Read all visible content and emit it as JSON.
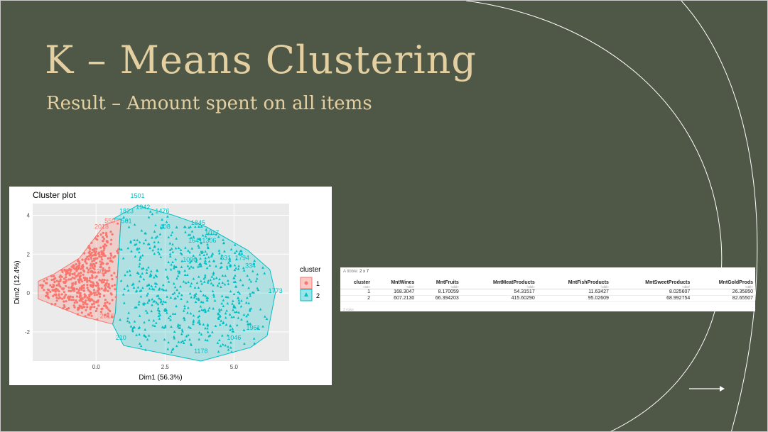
{
  "slide": {
    "title": "K – Means Clustering",
    "subtitle": "Result – Amount spent on all items",
    "colors": {
      "background": "#4f5746",
      "title": "#e4cfa1",
      "arcs": "#ffffff"
    },
    "next_arrow": "right-arrow-icon"
  },
  "chart_data": {
    "type": "scatter",
    "title": "Cluster plot",
    "xlabel": "Dim1 (56.3%)",
    "ylabel": "Dim2 (12.4%)",
    "xlim": [
      -2.3,
      7.0
    ],
    "ylim": [
      -3.5,
      4.6
    ],
    "x_ticks": [
      "0.0",
      "2.5",
      "5.0"
    ],
    "x_tick_values": [
      0.0,
      2.5,
      5.0
    ],
    "y_ticks": [
      "4",
      "2",
      "0",
      "-2"
    ],
    "y_tick_values": [
      4,
      2,
      0,
      -2
    ],
    "grid": true,
    "legend": {
      "title": "cluster",
      "position": "right",
      "entries": [
        {
          "label": "1",
          "color": "#f8766d",
          "shape": "circle"
        },
        {
          "label": "2",
          "color": "#00bfc4",
          "shape": "triangle"
        }
      ]
    },
    "series": [
      {
        "name": "1",
        "color": "#f8766d",
        "hull": [
          [
            -2.1,
            0.6
          ],
          [
            -1.5,
            1.0
          ],
          [
            -0.6,
            1.8
          ],
          [
            0.3,
            3.5
          ],
          [
            0.9,
            3.8
          ],
          [
            0.8,
            1.5
          ],
          [
            0.7,
            -1.0
          ],
          [
            0.6,
            -1.6
          ],
          [
            -0.5,
            -1.2
          ],
          [
            -2.1,
            -0.3
          ]
        ],
        "annotations": [
          {
            "text": "550",
            "x": 0.5,
            "y": 3.6
          },
          {
            "text": "2018",
            "x": 0.2,
            "y": 3.3
          },
          {
            "text": "201",
            "x": 0.2,
            "y": 1.0
          },
          {
            "text": "2016",
            "x": 0.4,
            "y": -1.3
          }
        ]
      },
      {
        "name": "2",
        "color": "#00bfc4",
        "hull": [
          [
            0.6,
            3.8
          ],
          [
            1.5,
            4.5
          ],
          [
            2.8,
            4.0
          ],
          [
            4.0,
            3.4
          ],
          [
            5.5,
            2.2
          ],
          [
            6.3,
            1.2
          ],
          [
            6.5,
            0.0
          ],
          [
            6.2,
            -2.2
          ],
          [
            5.6,
            -2.8
          ],
          [
            3.8,
            -3.5
          ],
          [
            1.0,
            -2.7
          ],
          [
            0.6,
            -1.6
          ],
          [
            0.7,
            -1.0
          ],
          [
            0.8,
            1.5
          ],
          [
            0.9,
            3.8
          ]
        ],
        "annotations": [
          {
            "text": "1501",
            "x": 1.5,
            "y": 4.9
          },
          {
            "text": "1942",
            "x": 1.7,
            "y": 4.3
          },
          {
            "text": "1476",
            "x": 2.4,
            "y": 4.1
          },
          {
            "text": "1823",
            "x": 1.1,
            "y": 4.1
          },
          {
            "text": "561",
            "x": 1.1,
            "y": 3.6
          },
          {
            "text": "408",
            "x": 2.5,
            "y": 3.3
          },
          {
            "text": "1845",
            "x": 3.7,
            "y": 3.5
          },
          {
            "text": "1017",
            "x": 4.2,
            "y": 3.0
          },
          {
            "text": "1641",
            "x": 3.6,
            "y": 2.6
          },
          {
            "text": "1306",
            "x": 4.1,
            "y": 2.6
          },
          {
            "text": "631",
            "x": 4.7,
            "y": 1.7
          },
          {
            "text": "1794",
            "x": 5.3,
            "y": 1.7
          },
          {
            "text": "334",
            "x": 5.6,
            "y": 1.3
          },
          {
            "text": "1090",
            "x": 3.4,
            "y": 1.6
          },
          {
            "text": "1773",
            "x": 6.5,
            "y": 0.0
          },
          {
            "text": "1961",
            "x": 5.7,
            "y": -1.9
          },
          {
            "text": "210",
            "x": 0.9,
            "y": -2.4
          },
          {
            "text": "1046",
            "x": 5.0,
            "y": -2.4
          },
          {
            "text": "1178",
            "x": 3.8,
            "y": -3.1
          }
        ]
      }
    ]
  },
  "table": {
    "header": "A tibble:",
    "dims": "2 x 7",
    "columns": [
      {
        "name": "cluster",
        "type": "<int>"
      },
      {
        "name": "MntWines",
        "type": "<dbl>"
      },
      {
        "name": "MntFruits",
        "type": "<dbl>"
      },
      {
        "name": "MntMeatProducts",
        "type": "<dbl>"
      },
      {
        "name": "MntFishProducts",
        "type": "<dbl>"
      },
      {
        "name": "MntSweetProducts",
        "type": "<dbl>"
      },
      {
        "name": "MntGoldProds",
        "type": "<dbl>"
      }
    ],
    "rows": [
      [
        "1",
        "168.3047",
        "8.170059",
        "54.31517",
        "11.63427",
        "8.025607",
        "26.35850"
      ],
      [
        "2",
        "607.2130",
        "66.394203",
        "415.60290",
        "95.02609",
        "68.992754",
        "82.65507"
      ]
    ],
    "footer": "2 rows"
  }
}
